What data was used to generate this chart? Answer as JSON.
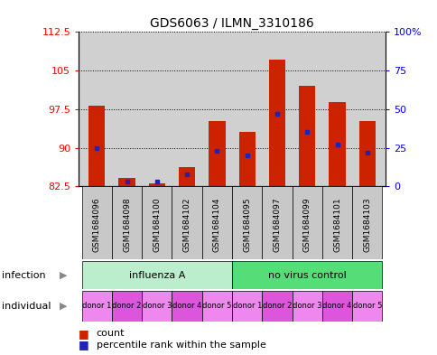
{
  "title": "GDS6063 / ILMN_3310186",
  "samples": [
    "GSM1684096",
    "GSM1684098",
    "GSM1684100",
    "GSM1684102",
    "GSM1684104",
    "GSM1684095",
    "GSM1684097",
    "GSM1684099",
    "GSM1684101",
    "GSM1684103"
  ],
  "counts": [
    98.2,
    84.2,
    83.1,
    86.3,
    95.2,
    93.0,
    107.2,
    102.0,
    98.8,
    95.2
  ],
  "percentiles": [
    25,
    3,
    3,
    8,
    23,
    20,
    47,
    35,
    27,
    22
  ],
  "ymin": 82.5,
  "ymax": 112.5,
  "yticks_left": [
    82.5,
    90,
    97.5,
    105,
    112.5
  ],
  "right_yticks": [
    0,
    25,
    50,
    75,
    100
  ],
  "right_yticklabels": [
    "0",
    "25",
    "50",
    "75",
    "100%"
  ],
  "infection_groups": [
    {
      "label": "influenza A",
      "start": 0,
      "end": 5,
      "color": "#bbeecc"
    },
    {
      "label": "no virus control",
      "start": 5,
      "end": 10,
      "color": "#55dd77"
    }
  ],
  "individual_labels": [
    "donor 1",
    "donor 2",
    "donor 3",
    "donor 4",
    "donor 5",
    "donor 1",
    "donor 2",
    "donor 3",
    "donor 4",
    "donor 5"
  ],
  "individual_colors": [
    "#ee88ee",
    "#dd55dd",
    "#ee88ee",
    "#dd55dd",
    "#ee88ee",
    "#ee88ee",
    "#dd55dd",
    "#ee88ee",
    "#dd55dd",
    "#ee88ee"
  ],
  "bar_color": "#cc2200",
  "marker_color": "#2222bb",
  "bar_width": 0.55,
  "plot_bg_color": "#d0d0d0",
  "sample_box_color": "#c8c8c8"
}
